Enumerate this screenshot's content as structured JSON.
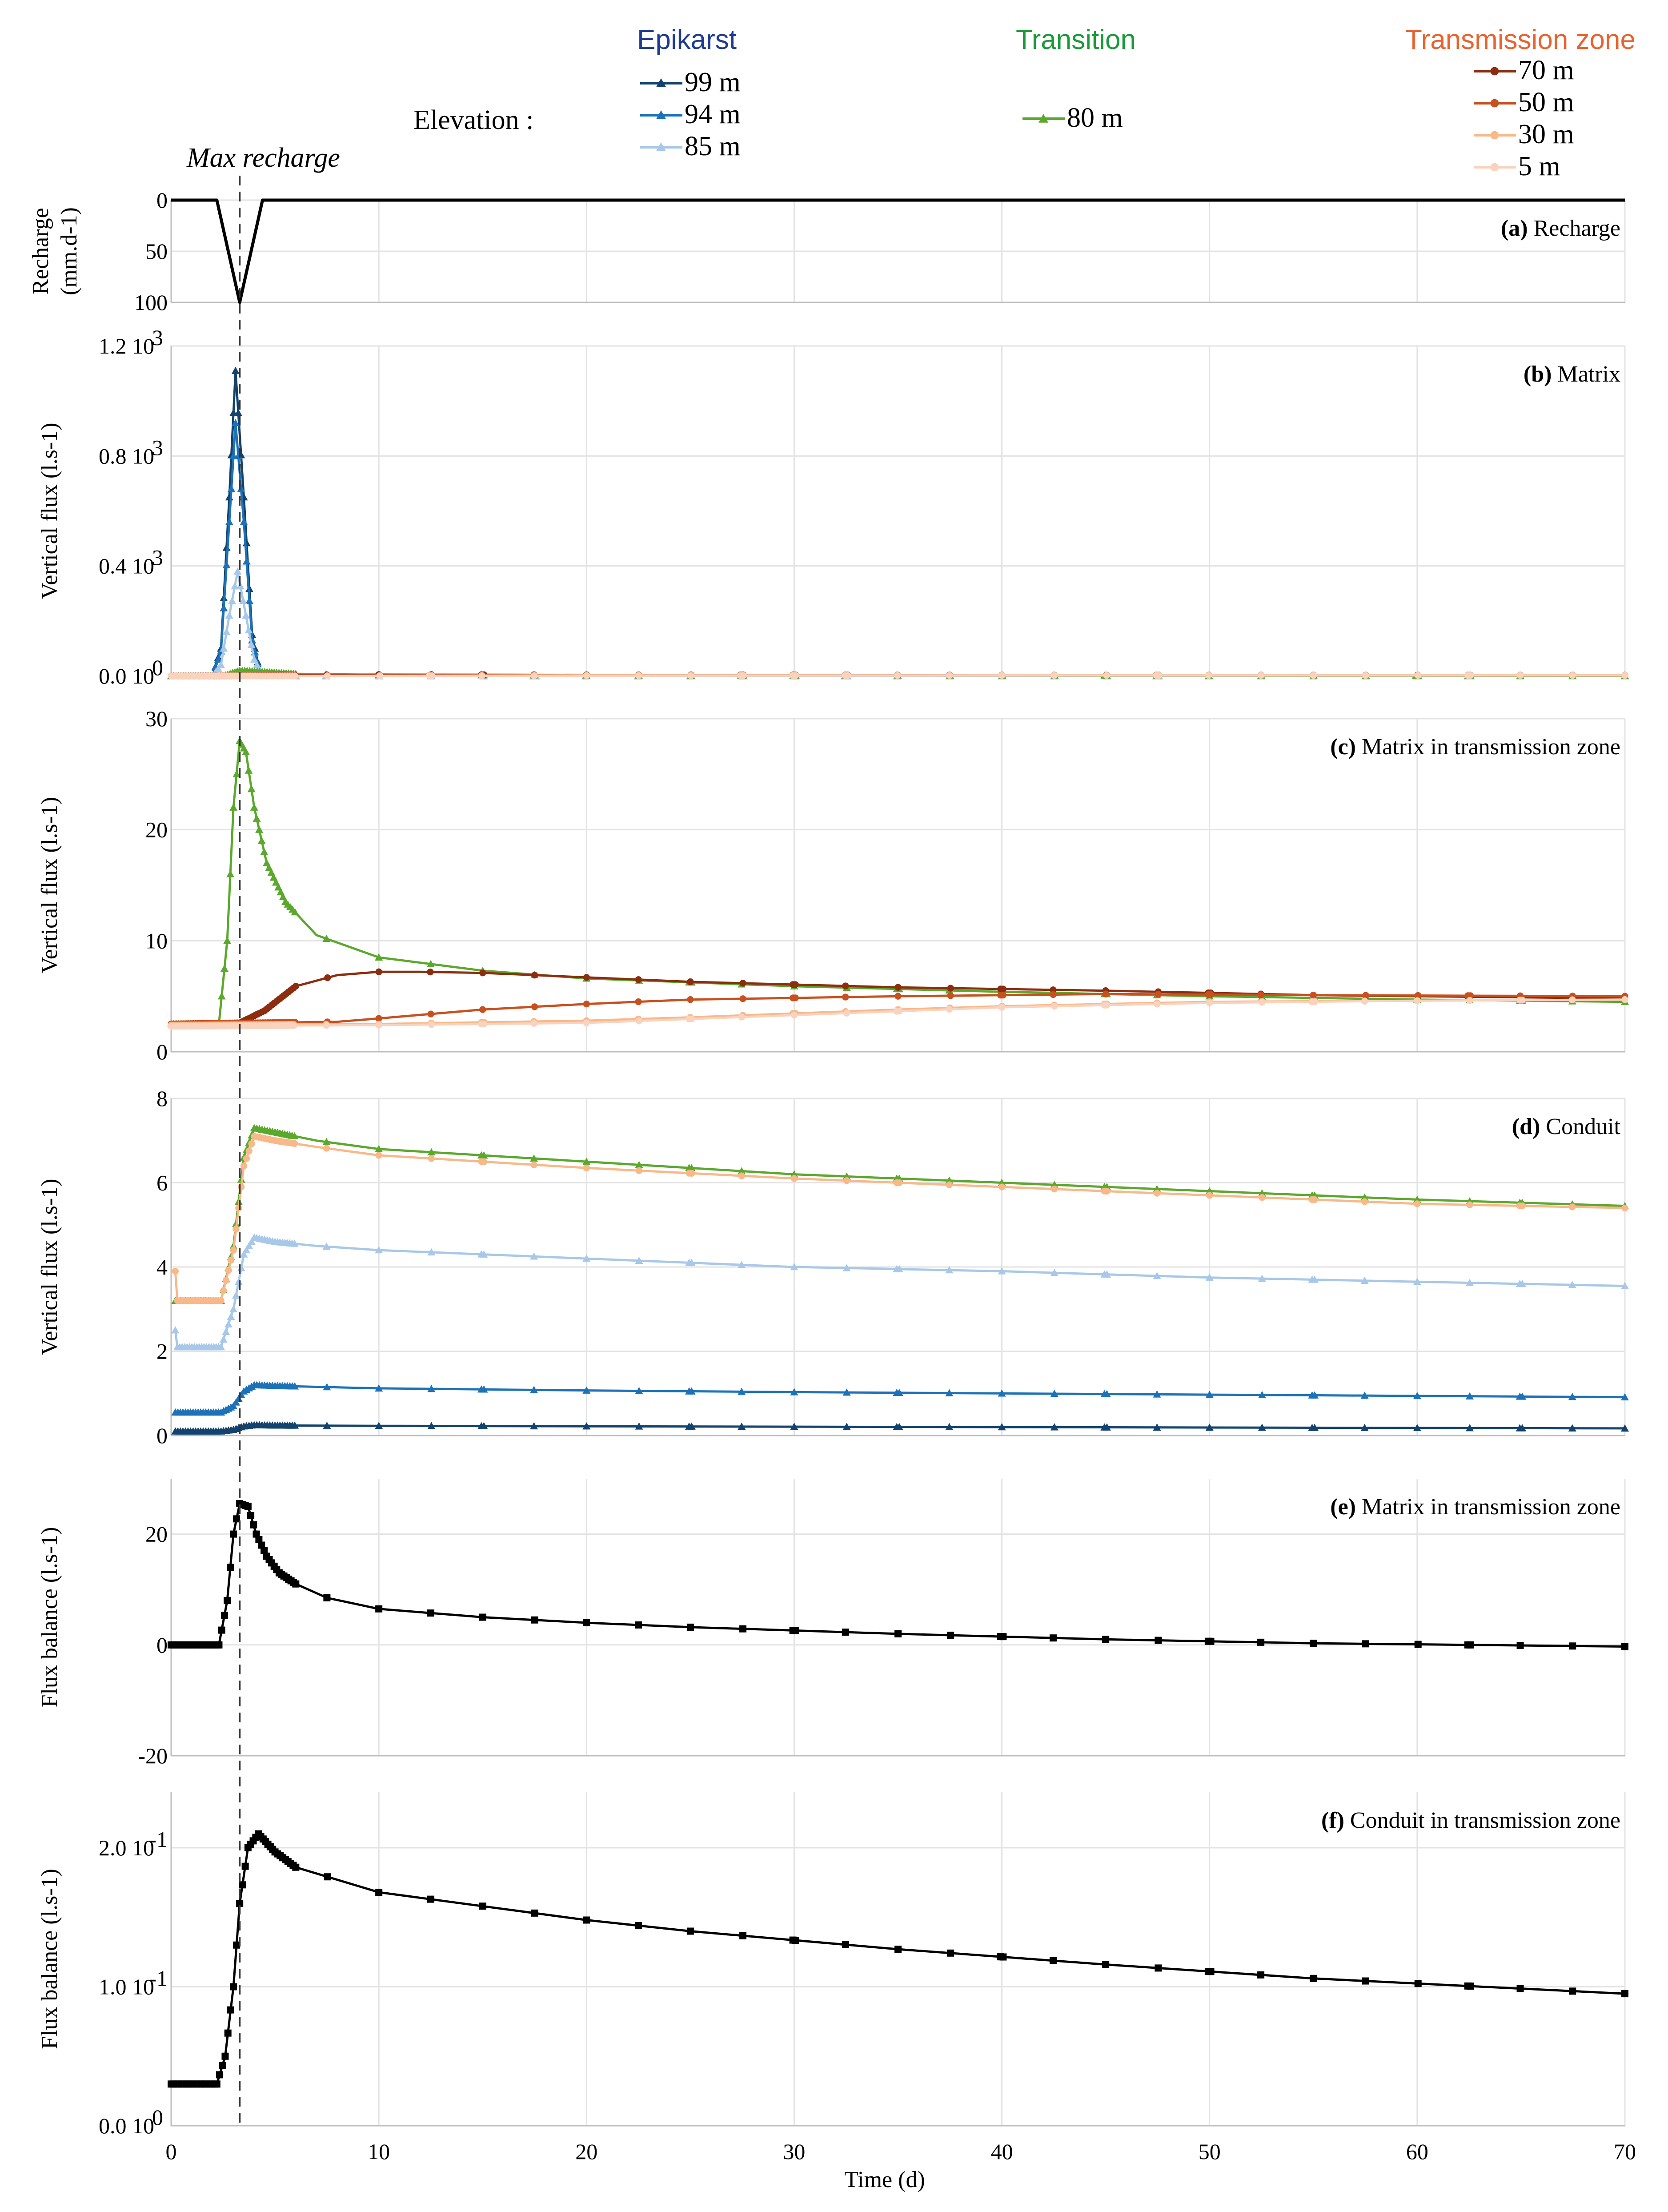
{
  "legend": {
    "elevation_label": "Elevation :",
    "max_recharge_label": "Max recharge",
    "groups": [
      {
        "name": "Epikarst",
        "color": "#1f3a93",
        "entries": [
          {
            "label": "99 m",
            "color": "#12426e",
            "marker": "triangle"
          },
          {
            "label": "94 m",
            "color": "#1c72b8",
            "marker": "triangle"
          },
          {
            "label": "85 m",
            "color": "#a7c8e8",
            "marker": "triangle"
          }
        ]
      },
      {
        "name": "Transition",
        "color": "#1a9a3a",
        "entries": [
          {
            "label": "80 m",
            "color": "#5aa82c",
            "marker": "triangle"
          }
        ]
      },
      {
        "name": "Transmission zone",
        "color": "#e8632e",
        "entries": [
          {
            "label": "70 m",
            "color": "#8b2d0e",
            "marker": "circle"
          },
          {
            "label": "50 m",
            "color": "#c8501e",
            "marker": "circle"
          },
          {
            "label": "30 m",
            "color": "#f8b889",
            "marker": "circle"
          },
          {
            "label": "5 m",
            "color": "#f9d3be",
            "marker": "circle"
          }
        ]
      }
    ]
  },
  "x_axis": {
    "label": "Time (d)",
    "ticks": [
      "0",
      "10",
      "20",
      "30",
      "40",
      "50",
      "60",
      "70"
    ],
    "xlim": [
      0,
      70
    ]
  },
  "max_recharge_day": 3.3,
  "chart_data": [
    {
      "id": "a",
      "type": "line",
      "letter": "(a)",
      "title": "Recharge",
      "ylabel_lines": [
        "Recharge",
        "(mm.d-1)"
      ],
      "ylim": [
        0,
        100
      ],
      "inverted": true,
      "yticks": [
        {
          "v": 0,
          "t": "0"
        },
        {
          "v": 50,
          "t": "50"
        },
        {
          "v": 100,
          "t": "100"
        }
      ],
      "series": [
        {
          "name": "Recharge",
          "color": "#000000",
          "marker": "none",
          "x": [
            0,
            2.2,
            3.3,
            4.4,
            70
          ],
          "y": [
            0,
            0,
            100,
            0,
            0
          ]
        }
      ]
    },
    {
      "id": "b",
      "type": "line",
      "letter": "(b)",
      "title": "Matrix",
      "ylabel": "Vertical flux (l.s-1)",
      "ylim": [
        0,
        1200
      ],
      "yticks": [
        {
          "v": 0,
          "t": "0.0 10",
          "sup": "0"
        },
        {
          "v": 400,
          "t": "0.4 10",
          "sup": "3"
        },
        {
          "v": 800,
          "t": "0.8 10",
          "sup": "3"
        },
        {
          "v": 1200,
          "t": "1.2 10",
          "sup": "3"
        }
      ],
      "series": [
        {
          "name": "99 m",
          "color": "#12426e",
          "marker": "triangle",
          "x": [
            0,
            2.0,
            2.4,
            2.8,
            3.1,
            3.5,
            3.9,
            4.3,
            6,
            10,
            70
          ],
          "y": [
            0,
            0,
            100,
            650,
            1110,
            650,
            150,
            0,
            0,
            0,
            0
          ]
        },
        {
          "name": "94 m",
          "color": "#1c72b8",
          "marker": "triangle",
          "x": [
            0,
            2.0,
            2.4,
            2.8,
            3.1,
            3.5,
            3.9,
            4.3,
            6,
            10,
            70
          ],
          "y": [
            0,
            0,
            90,
            560,
            920,
            560,
            130,
            0,
            0,
            0,
            0
          ]
        },
        {
          "name": "85 m",
          "color": "#a7c8e8",
          "marker": "triangle",
          "x": [
            0,
            2.0,
            2.4,
            2.8,
            3.2,
            3.6,
            4.0,
            4.4,
            6,
            10,
            70
          ],
          "y": [
            0,
            0,
            40,
            220,
            380,
            220,
            60,
            0,
            0,
            0,
            0
          ]
        },
        {
          "name": "80 m",
          "color": "#5aa82c",
          "marker": "triangle",
          "x": [
            0,
            2.5,
            3.3,
            4.5,
            6,
            10,
            20,
            70
          ],
          "y": [
            0,
            0,
            20,
            15,
            8,
            4,
            2,
            1
          ]
        },
        {
          "name": "70 m",
          "color": "#8b2d0e",
          "marker": "circle",
          "x": [
            0,
            3,
            5,
            10,
            20,
            40,
            70
          ],
          "y": [
            0,
            0,
            3,
            5,
            4,
            3,
            2
          ]
        },
        {
          "name": "50 m",
          "color": "#c8501e",
          "marker": "circle",
          "x": [
            0,
            5,
            20,
            40,
            70
          ],
          "y": [
            0,
            1,
            3,
            3,
            3
          ]
        },
        {
          "name": "30 m",
          "color": "#f8b889",
          "marker": "circle",
          "x": [
            0,
            5,
            20,
            40,
            70
          ],
          "y": [
            0,
            0,
            2,
            2,
            2
          ]
        },
        {
          "name": "5 m",
          "color": "#f9d3be",
          "marker": "circle",
          "x": [
            0,
            5,
            20,
            40,
            70
          ],
          "y": [
            0,
            0,
            1,
            2,
            2
          ]
        }
      ]
    },
    {
      "id": "c",
      "type": "line",
      "letter": "(c)",
      "title": "Matrix in transmission zone",
      "ylabel": "Vertical flux (l.s-1)",
      "ylim": [
        0,
        30
      ],
      "yticks": [
        {
          "v": 0,
          "t": "0"
        },
        {
          "v": 10,
          "t": "10"
        },
        {
          "v": 20,
          "t": "20"
        },
        {
          "v": 30,
          "t": "30"
        }
      ],
      "series": [
        {
          "name": "80 m",
          "color": "#5aa82c",
          "marker": "triangle",
          "x": [
            0,
            2.3,
            2.7,
            3.0,
            3.3,
            3.6,
            4.0,
            4.6,
            5.5,
            7,
            10,
            15,
            20,
            30,
            40,
            50,
            60,
            70
          ],
          "y": [
            2.5,
            2.5,
            10,
            22,
            28,
            27,
            22,
            17,
            13.5,
            10.5,
            8.5,
            7.3,
            6.6,
            5.9,
            5.4,
            5.0,
            4.7,
            4.5
          ]
        },
        {
          "name": "70 m",
          "color": "#8b2d0e",
          "marker": "circle",
          "x": [
            0,
            3.3,
            4.5,
            6,
            8,
            10,
            12,
            15,
            20,
            25,
            35,
            45,
            55,
            70
          ],
          "y": [
            2.5,
            2.6,
            3.7,
            5.9,
            6.9,
            7.2,
            7.2,
            7.1,
            6.7,
            6.3,
            5.8,
            5.5,
            5.1,
            4.8
          ]
        },
        {
          "name": "50 m",
          "color": "#c8501e",
          "marker": "circle",
          "x": [
            0,
            8,
            10,
            15,
            20,
            25,
            35,
            45,
            55,
            70
          ],
          "y": [
            2.5,
            2.7,
            3.0,
            3.8,
            4.3,
            4.7,
            5.0,
            5.2,
            5.1,
            5.0
          ]
        },
        {
          "name": "30 m",
          "color": "#f8b889",
          "marker": "circle",
          "x": [
            0,
            10,
            20,
            25,
            35,
            40,
            50,
            60,
            70
          ],
          "y": [
            2.4,
            2.5,
            2.8,
            3.1,
            3.8,
            4.1,
            4.5,
            4.6,
            4.7
          ]
        },
        {
          "name": "5 m",
          "color": "#f9d3be",
          "marker": "circle",
          "x": [
            0,
            10,
            20,
            30,
            40,
            50,
            60,
            70
          ],
          "y": [
            2.3,
            2.4,
            2.6,
            3.3,
            4.0,
            4.4,
            4.6,
            4.7
          ]
        }
      ]
    },
    {
      "id": "d",
      "type": "line",
      "letter": "(d)",
      "title": "Conduit",
      "ylabel": "Vertical flux (l.s-1)",
      "ylim": [
        0,
        8
      ],
      "yticks": [
        {
          "v": 0,
          "t": "0"
        },
        {
          "v": 2,
          "t": "2"
        },
        {
          "v": 4,
          "t": "4"
        },
        {
          "v": 6,
          "t": "6"
        },
        {
          "v": 8,
          "t": "8"
        }
      ],
      "series": [
        {
          "name": "80 m",
          "color": "#5aa82c",
          "marker": "triangle",
          "x": [
            0.2,
            2.4,
            3.0,
            3.5,
            4.0,
            5,
            7,
            10,
            20,
            30,
            40,
            50,
            60,
            70
          ],
          "y": [
            3.2,
            3.2,
            4.5,
            6.6,
            7.3,
            7.2,
            7.0,
            6.8,
            6.5,
            6.2,
            6.0,
            5.8,
            5.6,
            5.45
          ]
        },
        {
          "name": "30 m",
          "color": "#f8b889",
          "marker": "circle",
          "x": [
            0.2,
            0.3,
            1,
            2.4,
            3.0,
            3.5,
            4.0,
            5,
            7,
            10,
            20,
            30,
            40,
            50,
            60,
            70
          ],
          "y": [
            3.9,
            3.2,
            3.2,
            3.2,
            4.4,
            6.4,
            7.1,
            7.0,
            6.85,
            6.65,
            6.35,
            6.1,
            5.9,
            5.7,
            5.5,
            5.4
          ]
        },
        {
          "name": "85 m",
          "color": "#a7c8e8",
          "marker": "triangle",
          "x": [
            0.2,
            0.3,
            1,
            2.4,
            3.0,
            3.5,
            4.0,
            5,
            7,
            10,
            20,
            30,
            40,
            50,
            60,
            70
          ],
          "y": [
            2.5,
            2.1,
            2.1,
            2.1,
            3.0,
            4.3,
            4.7,
            4.6,
            4.5,
            4.4,
            4.2,
            4.0,
            3.9,
            3.75,
            3.65,
            3.55
          ]
        },
        {
          "name": "94 m",
          "color": "#1c72b8",
          "marker": "triangle",
          "x": [
            0.2,
            2.4,
            3.0,
            3.5,
            4.0,
            5,
            10,
            20,
            30,
            40,
            50,
            60,
            70
          ],
          "y": [
            0.55,
            0.55,
            0.7,
            1.05,
            1.2,
            1.18,
            1.12,
            1.07,
            1.03,
            1.0,
            0.97,
            0.94,
            0.91
          ]
        },
        {
          "name": "99 m",
          "color": "#12426e",
          "marker": "triangle",
          "x": [
            0.2,
            2.4,
            3.0,
            3.5,
            4.0,
            5,
            10,
            20,
            30,
            40,
            50,
            60,
            70
          ],
          "y": [
            0.1,
            0.1,
            0.14,
            0.22,
            0.25,
            0.24,
            0.23,
            0.22,
            0.21,
            0.2,
            0.19,
            0.18,
            0.17
          ]
        }
      ]
    },
    {
      "id": "e",
      "type": "line",
      "letter": "(e)",
      "title": "Matrix in transmission zone",
      "ylabel": "Flux balance (l.s-1)",
      "ylim": [
        -20,
        30
      ],
      "yticks": [
        {
          "v": -20,
          "t": "-20"
        },
        {
          "v": 0,
          "t": "0"
        },
        {
          "v": 20,
          "t": "20"
        }
      ],
      "series": [
        {
          "name": "Flux balance",
          "color": "#000000",
          "marker": "square",
          "x": [
            0,
            2.3,
            2.7,
            3.0,
            3.3,
            3.7,
            4.1,
            4.6,
            5.2,
            6,
            7.5,
            10,
            15,
            20,
            25,
            35,
            45,
            55,
            70
          ],
          "y": [
            0,
            0,
            8,
            20,
            25.5,
            25,
            20,
            16,
            13,
            11,
            8.5,
            6.5,
            5,
            4,
            3.2,
            2,
            1.0,
            0.3,
            -0.3
          ]
        }
      ]
    },
    {
      "id": "f",
      "type": "line",
      "letter": "(f)",
      "title": "Conduit in transmission zone",
      "ylabel": "Flux balance (l.s-1)",
      "ylim": [
        0,
        0.24
      ],
      "yticks": [
        {
          "v": 0,
          "t": "0.0 10",
          "sup": "0"
        },
        {
          "v": 0.1,
          "t": "1.0 10",
          "sup": "-1"
        },
        {
          "v": 0.2,
          "t": "2.0 10",
          "sup": "-1"
        }
      ],
      "series": [
        {
          "name": "Flux balance",
          "color": "#000000",
          "marker": "square",
          "x": [
            0,
            2.2,
            2.6,
            3.0,
            3.3,
            3.7,
            4.2,
            5,
            6,
            8,
            10,
            15,
            20,
            25,
            35,
            45,
            55,
            70
          ],
          "y": [
            0.03,
            0.03,
            0.05,
            0.1,
            0.16,
            0.2,
            0.21,
            0.197,
            0.186,
            0.177,
            0.168,
            0.158,
            0.148,
            0.14,
            0.127,
            0.116,
            0.106,
            0.095
          ]
        }
      ]
    }
  ]
}
